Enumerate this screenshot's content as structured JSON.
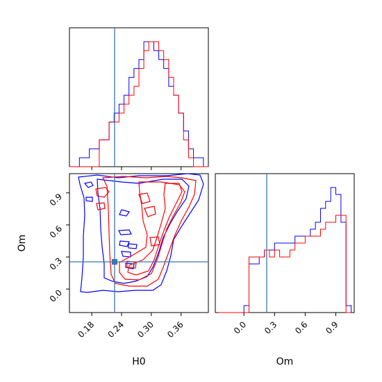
{
  "chart_data": {
    "type": "corner",
    "parameters": [
      "H0",
      "Om"
    ],
    "truth": {
      "H0": 0.23,
      "Om": 0.22
    },
    "colors": {
      "series_a": "#0000ff",
      "series_b": "#ff0000",
      "truth": "#3b75af"
    },
    "panels": [
      {
        "id": "hist-H0",
        "type": "histogram",
        "xlim": [
          0.135,
          0.415
        ],
        "bin_edges": [
          0.135,
          0.145,
          0.155,
          0.165,
          0.175,
          0.185,
          0.195,
          0.205,
          0.215,
          0.225,
          0.235,
          0.245,
          0.255,
          0.265,
          0.275,
          0.285,
          0.295,
          0.305,
          0.315,
          0.325,
          0.335,
          0.345,
          0.355,
          0.365,
          0.375,
          0.385,
          0.395,
          0.405,
          0.415
        ],
        "series": [
          {
            "color": "blue",
            "counts": [
              0,
              0,
              1,
              1,
              2,
              2,
              3,
              3,
              5,
              6,
              7,
              8,
              10,
              11,
              12,
              14,
              14,
              13,
              12,
              11,
              9,
              8,
              6,
              4,
              2,
              1,
              1,
              0
            ]
          },
          {
            "color": "red",
            "counts": [
              0,
              0,
              0,
              0,
              0,
              0,
              3,
              3,
              5,
              5,
              6,
              7,
              8,
              9,
              11,
              13,
              14,
              14,
              13,
              12,
              10,
              8,
              6,
              3,
              1,
              0,
              0,
              0
            ]
          }
        ]
      },
      {
        "id": "joint-H0-Om",
        "type": "contour",
        "xlim": [
          0.135,
          0.415
        ],
        "ylim": [
          -0.22,
          1.08
        ],
        "xticks": [
          "0.18",
          "0.24",
          "0.30",
          "0.36"
        ],
        "yticks": [
          "0.0",
          "0.3",
          "0.6",
          "0.9"
        ],
        "xlabel": "H0",
        "ylabel": "Om"
      },
      {
        "id": "hist-Om",
        "type": "histogram",
        "xlim": [
          -0.28,
          1.08
        ],
        "xticks": [
          "0.0",
          "0.3",
          "0.6",
          "0.9"
        ],
        "xlabel": "Om",
        "bin_edges": [
          -0.25,
          -0.2,
          -0.15,
          -0.1,
          -0.05,
          0.0,
          0.05,
          0.1,
          0.15,
          0.2,
          0.25,
          0.3,
          0.35,
          0.4,
          0.45,
          0.5,
          0.55,
          0.6,
          0.65,
          0.7,
          0.75,
          0.8,
          0.85,
          0.9,
          0.95,
          1.0,
          1.05
        ],
        "series": [
          {
            "color": "blue",
            "counts": [
              0,
              0,
              0,
              0,
              0,
              1,
              7,
              7,
              8,
              9,
              9,
              10,
              10,
              10,
              10,
              11,
              11,
              11,
              12,
              13,
              15,
              16,
              18,
              17,
              13,
              1
            ]
          },
          {
            "color": "red",
            "counts": [
              0,
              0,
              0,
              0,
              0,
              0,
              8,
              8,
              8,
              9,
              8,
              9,
              8,
              8,
              9,
              10,
              10,
              11,
              11,
              11,
              12,
              13,
              13,
              14,
              14,
              0
            ]
          }
        ]
      }
    ]
  }
}
